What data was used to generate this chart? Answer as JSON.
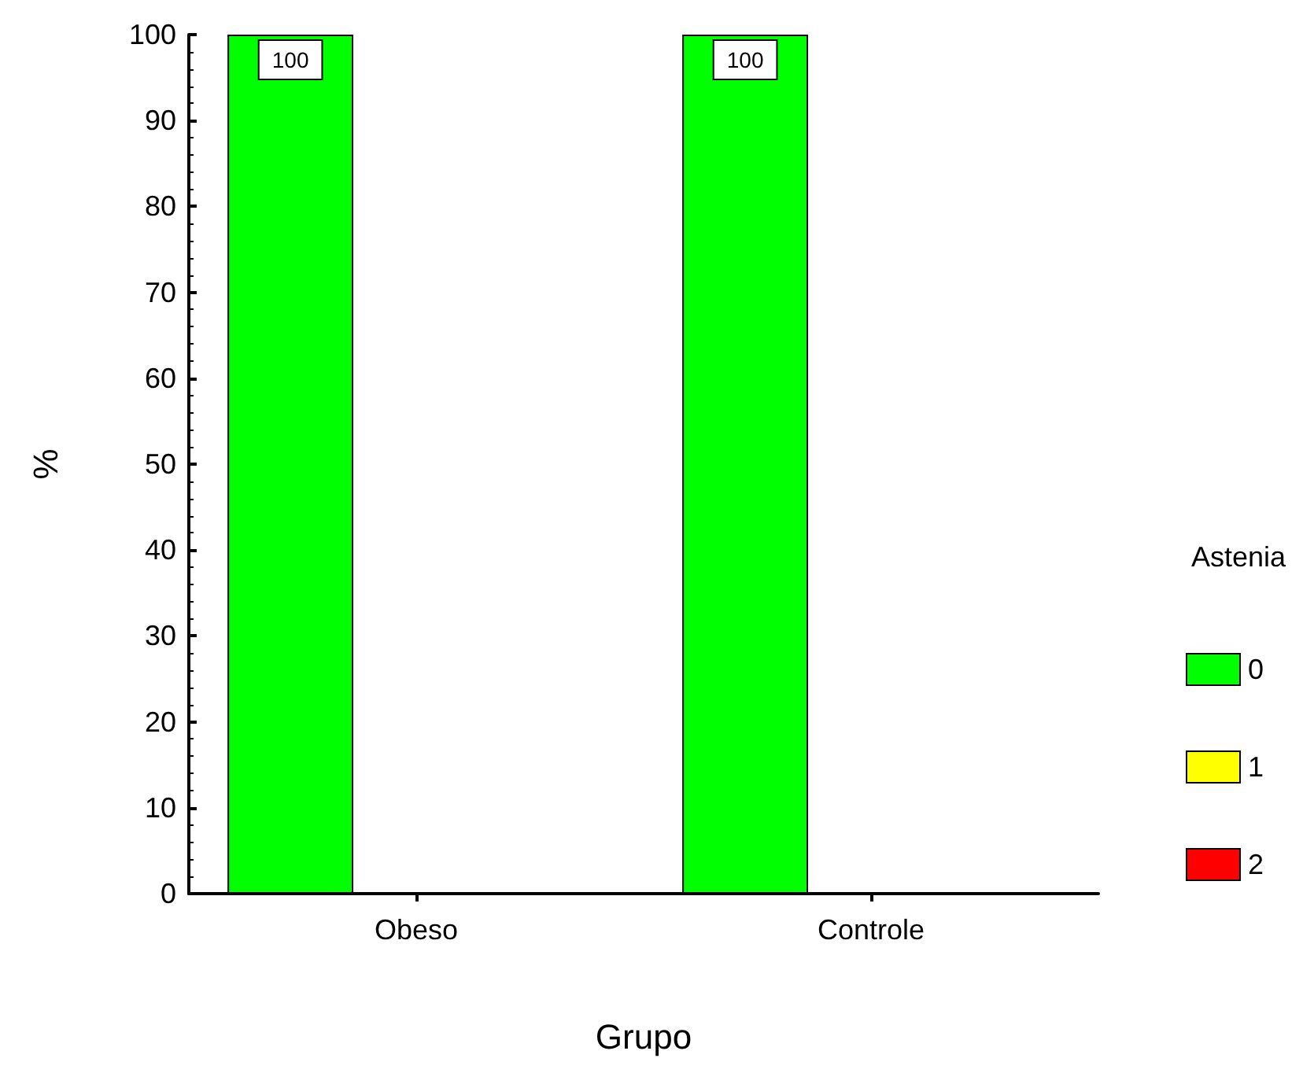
{
  "chart_data": {
    "type": "bar",
    "categories": [
      "Obeso",
      "Controle"
    ],
    "series": [
      {
        "name": "0",
        "color": "#00ff00",
        "values": [
          100,
          100
        ],
        "value_labels": [
          "100",
          "100"
        ]
      },
      {
        "name": "1",
        "color": "#ffff00",
        "values": [
          0,
          0
        ],
        "value_labels": [
          null,
          null
        ]
      },
      {
        "name": "2",
        "color": "#ff0000",
        "values": [
          0,
          0
        ],
        "value_labels": [
          null,
          null
        ]
      }
    ],
    "xlabel": "Grupo",
    "ylabel": "%",
    "legend_title": "Astenia",
    "ylim": [
      0,
      100
    ],
    "yticks": [
      0,
      10,
      20,
      30,
      40,
      50,
      60,
      70,
      80,
      90,
      100
    ],
    "grid": false,
    "legend": "right"
  }
}
